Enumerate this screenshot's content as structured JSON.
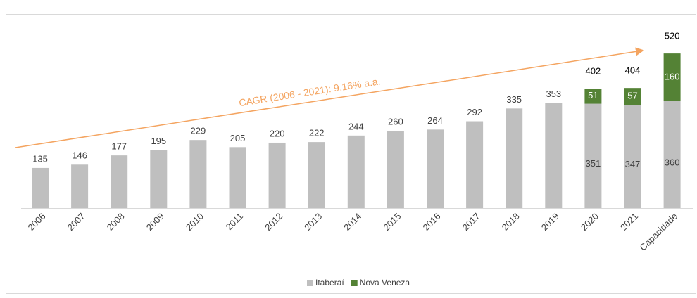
{
  "chart_data": {
    "type": "stacked-bar",
    "annotation": "CAGR (2006 - 2021): 9,16% a.a.",
    "categories": [
      "2006",
      "2007",
      "2008",
      "2009",
      "2010",
      "2011",
      "2012",
      "2013",
      "2014",
      "2015",
      "2016",
      "2017",
      "2018",
      "2019",
      "2020",
      "2021",
      "Capacidade"
    ],
    "series": [
      {
        "name": "Itaberaí",
        "color": "#bfbfbf",
        "values": [
          135,
          146,
          177,
          195,
          229,
          205,
          220,
          222,
          244,
          260,
          264,
          292,
          335,
          353,
          351,
          347,
          360
        ]
      },
      {
        "name": "Nova Veneza",
        "color": "#548235",
        "values": [
          null,
          null,
          null,
          null,
          null,
          null,
          null,
          null,
          null,
          null,
          null,
          null,
          null,
          null,
          51,
          57,
          160
        ]
      }
    ],
    "totals": [
      null,
      null,
      null,
      null,
      null,
      null,
      null,
      null,
      null,
      null,
      null,
      null,
      null,
      null,
      402,
      404,
      520
    ],
    "ylim": [
      0,
      700
    ]
  }
}
